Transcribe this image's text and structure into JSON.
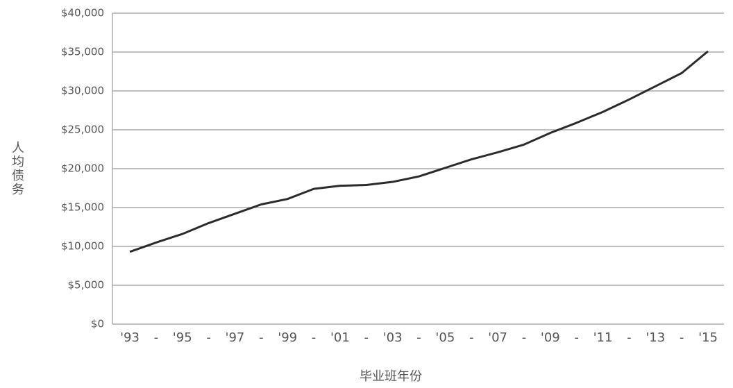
{
  "chart_data": {
    "type": "line",
    "y_label": "人均债务",
    "x_label": "毕业班年份",
    "categories": [
      "'93",
      "-",
      "'95",
      "-",
      "'97",
      "-",
      "'99",
      "-",
      "'01",
      "-",
      "'03",
      "-",
      "'05",
      "-",
      "'07",
      "-",
      "'09",
      "-",
      "'11",
      "-",
      "'13",
      "-",
      "'15"
    ],
    "series": [
      {
        "color": "#2b2b2b",
        "values": [
          9300,
          10500,
          11600,
          13000,
          14200,
          15400,
          16100,
          17400,
          17800,
          17900,
          18300,
          19000,
          20100,
          21200,
          22100,
          23100,
          24600,
          25900,
          27300,
          28900,
          30600,
          32300,
          35100
        ]
      }
    ],
    "ylim": [
      0,
      40000
    ],
    "yticks": [
      {
        "value": 0,
        "label": "$0"
      },
      {
        "value": 5000,
        "label": "$5,000"
      },
      {
        "value": 10000,
        "label": "$10,000"
      },
      {
        "value": 15000,
        "label": "$15,000"
      },
      {
        "value": 20000,
        "label": "$20,000"
      },
      {
        "value": 25000,
        "label": "$25,000"
      },
      {
        "value": 30000,
        "label": "$30,000"
      },
      {
        "value": 35000,
        "label": "$35,000"
      },
      {
        "value": 40000,
        "label": "$40,000"
      }
    ],
    "grid": true
  }
}
